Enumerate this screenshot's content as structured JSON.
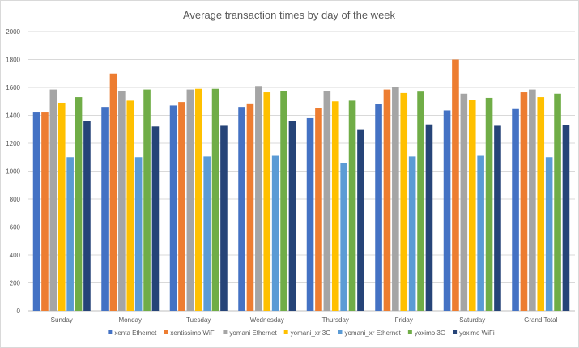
{
  "chart_data": {
    "type": "bar",
    "title": "Average transaction times by day of the week",
    "xlabel": "",
    "ylabel": "",
    "ylim": [
      0,
      2000
    ],
    "yticks": [
      0,
      200,
      400,
      600,
      800,
      1000,
      1200,
      1400,
      1600,
      1800,
      2000
    ],
    "grid": true,
    "legend_position": "bottom",
    "categories": [
      "Sunday",
      "Monday",
      "Tuesday",
      "Wednesday",
      "Thursday",
      "Friday",
      "Saturday",
      "Grand Total"
    ],
    "series": [
      {
        "name": "xenta Ethernet",
        "color": "#4472C4",
        "values": [
          1420,
          1460,
          1470,
          1460,
          1380,
          1480,
          1435,
          1445
        ]
      },
      {
        "name": "xentissimo WiFi",
        "color": "#ED7D31",
        "values": [
          1420,
          1700,
          1495,
          1485,
          1455,
          1585,
          1800,
          1565
        ]
      },
      {
        "name": "yomani Ethernet",
        "color": "#A5A5A5",
        "values": [
          1585,
          1575,
          1585,
          1610,
          1575,
          1600,
          1555,
          1585
        ]
      },
      {
        "name": "yomani_xr 3G",
        "color": "#FFC000",
        "values": [
          1490,
          1505,
          1590,
          1565,
          1500,
          1560,
          1510,
          1530
        ]
      },
      {
        "name": "yomani_xr Ethernet",
        "color": "#5B9BD5",
        "values": [
          1100,
          1100,
          1105,
          1110,
          1060,
          1105,
          1110,
          1100
        ]
      },
      {
        "name": "yoximo 3G",
        "color": "#70AD47",
        "values": [
          1530,
          1585,
          1590,
          1575,
          1505,
          1570,
          1525,
          1555
        ]
      },
      {
        "name": "yoximo WiFi",
        "color": "#264478",
        "values": [
          1360,
          1320,
          1325,
          1360,
          1295,
          1335,
          1325,
          1330
        ]
      }
    ]
  }
}
